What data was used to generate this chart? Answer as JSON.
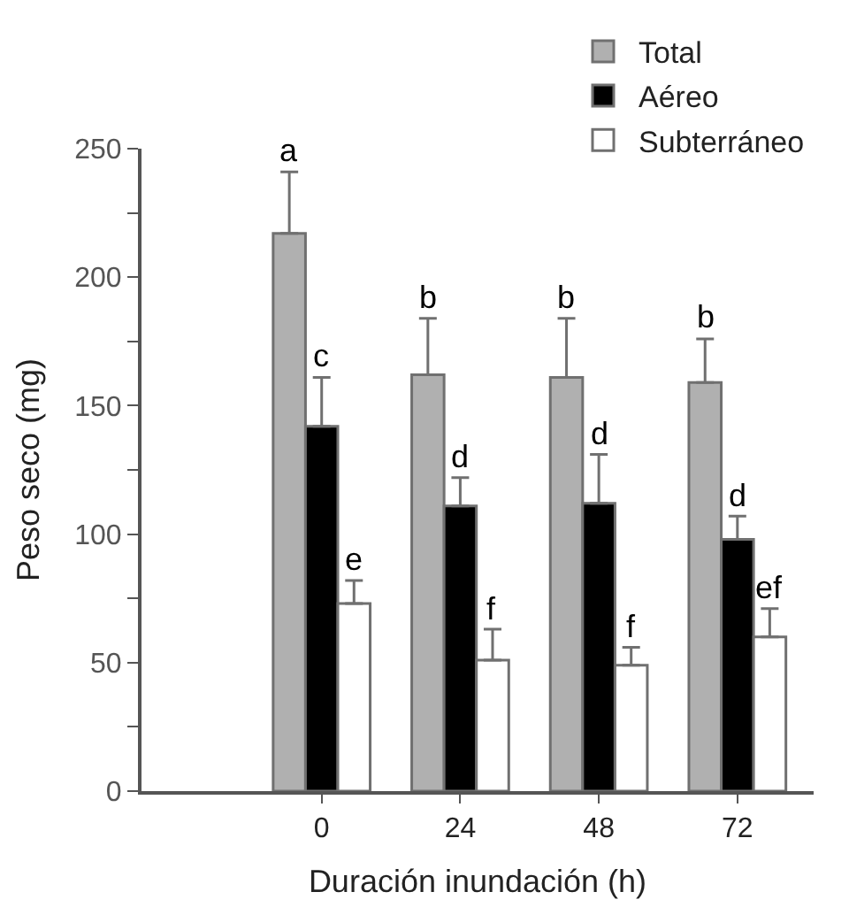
{
  "chart_data": {
    "type": "bar",
    "xlabel": "Duración inundación (h)",
    "ylabel": "Peso seco (mg)",
    "categories": [
      "0",
      "24",
      "48",
      "72"
    ],
    "series": [
      {
        "name": "Total",
        "color": "#b0b0b0",
        "values": [
          217,
          162,
          161,
          159
        ],
        "errors": [
          [
            217,
            241
          ],
          [
            162,
            184
          ],
          [
            161,
            184
          ],
          [
            159,
            176
          ]
        ],
        "value_labels": [
          "a",
          "b",
          "b",
          "b"
        ]
      },
      {
        "name": "Aéreo",
        "color": "#000000",
        "values": [
          142,
          111,
          112,
          98
        ],
        "errors": [
          [
            142,
            161
          ],
          [
            111,
            122
          ],
          [
            112,
            131
          ],
          [
            98,
            107
          ]
        ],
        "value_labels": [
          "c",
          "d",
          "d",
          "d"
        ]
      },
      {
        "name": "Subterráneo",
        "color": "#ffffff",
        "values": [
          73,
          51,
          49,
          60
        ],
        "errors": [
          [
            73,
            82
          ],
          [
            51,
            63
          ],
          [
            49,
            56
          ],
          [
            60,
            71
          ]
        ],
        "value_labels": [
          "e",
          "f",
          "f",
          "ef"
        ]
      }
    ],
    "ylim": [
      0,
      250
    ],
    "yticks": [
      0,
      {
        "value": 25,
        "label": null
      },
      50,
      {
        "value": 75,
        "label": null
      },
      100,
      {
        "value": 125,
        "label": null
      },
      150,
      {
        "value": 175,
        "label": null
      },
      200,
      {
        "value": 225,
        "label": null
      },
      250
    ],
    "legend": "top right"
  }
}
